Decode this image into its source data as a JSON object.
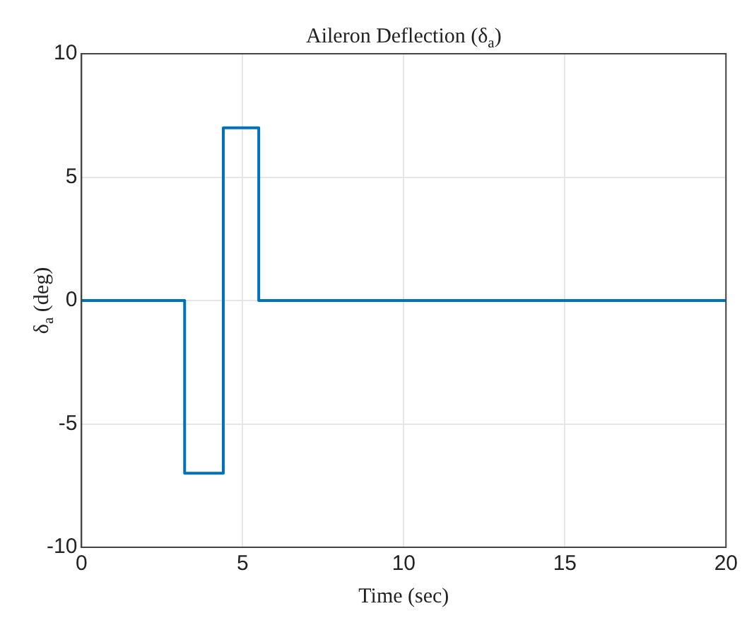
{
  "chart_data": {
    "type": "step",
    "title": "Aileron Deflection (δ$_{a}$)",
    "xlabel": "Time (sec)",
    "ylabel": "δ$_{a}$ (deg)",
    "x": [
      0,
      3.2,
      4.4,
      5.5,
      20
    ],
    "series": [
      {
        "color": "#0072bd",
        "values": [
          0,
          -7,
          7,
          0,
          0
        ]
      }
    ],
    "xlim": [
      0,
      20
    ],
    "xticks": [
      0,
      5,
      10,
      15,
      20
    ],
    "ylim": [
      -10,
      10
    ],
    "yticks": [
      -10,
      -5,
      0,
      5,
      10
    ],
    "grid": true,
    "legend": false
  }
}
